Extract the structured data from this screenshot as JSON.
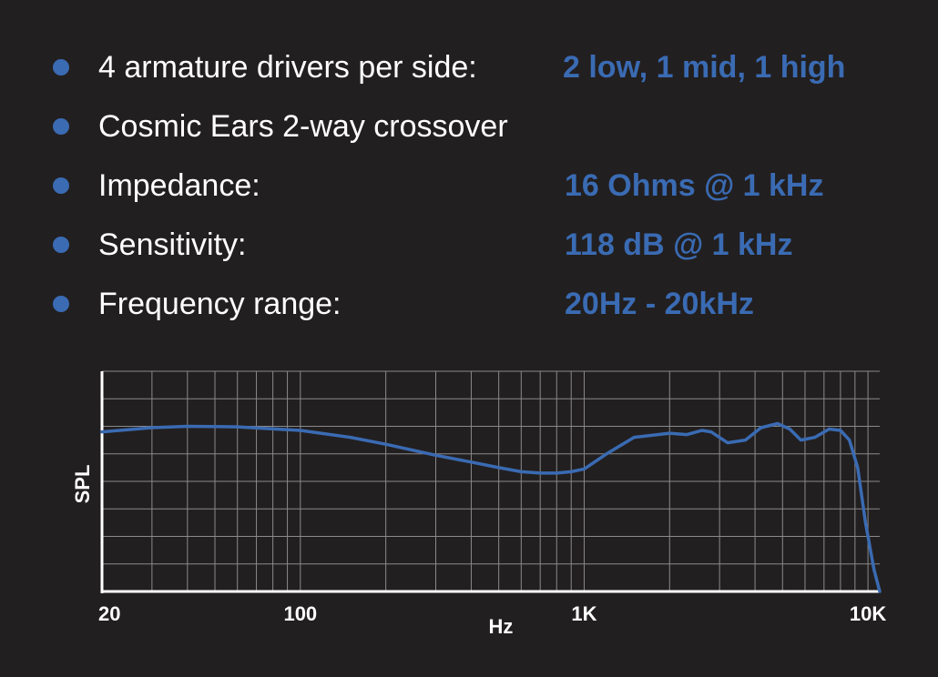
{
  "specs": [
    {
      "label": "4 armature drivers per side:",
      "value": "2 low, 1 mid, 1 high"
    },
    {
      "label": "Cosmic Ears 2-way crossover",
      "value": ""
    },
    {
      "label": "Impedance:",
      "value": "16 Ohms @ 1 kHz"
    },
    {
      "label": "Sensitivity:",
      "value": "118 dB @ 1 kHz"
    },
    {
      "label": "Frequency range:",
      "value": "20Hz - 20kHz"
    }
  ],
  "colors": {
    "background": "#221f20",
    "accent": "#3a6bb3",
    "text": "#ffffff",
    "grid": "#8a8a8a",
    "curve": "#3a6bb3"
  },
  "chart_data": {
    "type": "line",
    "xlabel": "Hz",
    "ylabel": "SPL",
    "x_scale": "log",
    "xlim": [
      20,
      11000
    ],
    "ylim": [
      0,
      8
    ],
    "grid": true,
    "x_ticks": [
      {
        "value": 20,
        "label": "20"
      },
      {
        "value": 100,
        "label": "100"
      },
      {
        "value": 1000,
        "label": "1K"
      },
      {
        "value": 10000,
        "label": "10K"
      }
    ],
    "series": [
      {
        "x": [
          20,
          30,
          40,
          60,
          100,
          150,
          200,
          300,
          400,
          500,
          600,
          700,
          800,
          900,
          1000,
          1200,
          1500,
          2000,
          2300,
          2600,
          2800,
          3200,
          3700,
          4200,
          4800,
          5300,
          5800,
          6500,
          7300,
          8000,
          8600,
          9200,
          9800,
          10500,
          11000
        ],
        "y": [
          5.8,
          5.95,
          6.0,
          5.98,
          5.85,
          5.6,
          5.35,
          4.95,
          4.7,
          4.5,
          4.35,
          4.3,
          4.3,
          4.35,
          4.45,
          5.0,
          5.6,
          5.75,
          5.7,
          5.85,
          5.8,
          5.4,
          5.5,
          5.95,
          6.1,
          5.9,
          5.5,
          5.6,
          5.9,
          5.85,
          5.5,
          4.5,
          2.5,
          0.8,
          0.0
        ]
      }
    ]
  }
}
